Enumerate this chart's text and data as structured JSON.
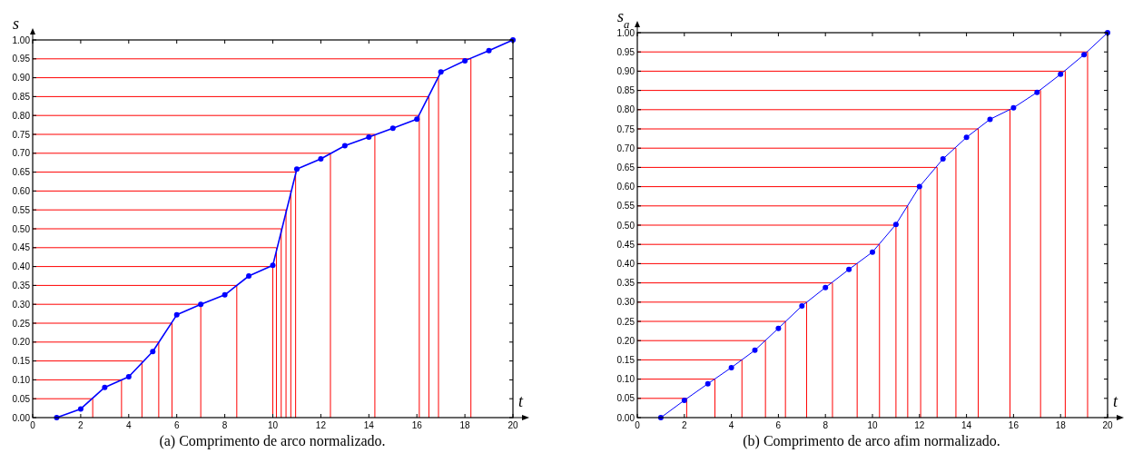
{
  "chart_data": [
    {
      "type": "line",
      "title": "(a)  Comprimento de arco normalizado.",
      "xlabel": "t",
      "ylabel": "s",
      "grid": false,
      "xlim": [
        0,
        20
      ],
      "xticks": [
        0,
        2,
        4,
        6,
        8,
        10,
        12,
        14,
        16,
        18,
        20
      ],
      "ylim": [
        0,
        1
      ],
      "yticks": [
        {
          "value": 0,
          "label": "0.00"
        },
        {
          "value": 0.05,
          "label": "0.05"
        },
        {
          "value": 0.1,
          "label": "0.10"
        },
        {
          "value": 0.15,
          "label": "0.15"
        },
        {
          "value": 0.2,
          "label": "0.20"
        },
        {
          "value": 0.25,
          "label": "0.25"
        },
        {
          "value": 0.3,
          "label": "0.30"
        },
        {
          "value": 0.35,
          "label": "0.35"
        },
        {
          "value": 0.4,
          "label": "0.40"
        },
        {
          "value": 0.45,
          "label": "0.45"
        },
        {
          "value": 0.5,
          "label": "0.50"
        },
        {
          "value": 0.55,
          "label": "0.55"
        },
        {
          "value": 0.6,
          "label": "0.60"
        },
        {
          "value": 0.65,
          "label": "0.65"
        },
        {
          "value": 0.7,
          "label": "0.70"
        },
        {
          "value": 0.75,
          "label": "0.75"
        },
        {
          "value": 0.8,
          "label": "0.80"
        },
        {
          "value": 0.85,
          "label": "0.85"
        },
        {
          "value": 0.9,
          "label": "0.90"
        },
        {
          "value": 0.95,
          "label": "0.95"
        },
        {
          "value": 1,
          "label": "1.00"
        }
      ],
      "series": [
        {
          "color": "#ff0000",
          "marker": "none",
          "x": [
            0,
            2.5,
            2.5,
            null,
            0,
            3.7,
            3.7,
            null,
            0,
            4.55,
            4.55,
            null,
            0,
            5.25,
            5.25,
            null,
            0,
            5.8,
            5.8,
            null,
            0,
            7,
            7,
            null,
            0,
            8.5,
            8.5,
            null,
            0,
            10,
            10,
            null,
            0,
            10.15,
            10.15,
            null,
            0,
            10.35,
            10.35,
            null,
            0,
            10.55,
            10.55,
            null,
            0,
            10.75,
            10.75,
            null,
            0,
            10.95,
            10.95,
            null,
            0,
            12.4,
            12.4,
            null,
            0,
            14.25,
            14.25,
            null,
            0,
            16.1,
            16.1,
            null,
            0,
            16.5,
            16.5,
            null,
            0,
            16.9,
            16.9,
            null,
            0,
            18.25,
            18.25,
            null
          ],
          "values": [
            0.05,
            0.05,
            0,
            null,
            0.1,
            0.1,
            0,
            null,
            0.15,
            0.15,
            0,
            null,
            0.2,
            0.2,
            0,
            null,
            0.25,
            0.25,
            0,
            null,
            0.3,
            0.3,
            0,
            null,
            0.35,
            0.35,
            0,
            null,
            0.4,
            0.4,
            0,
            null,
            0.45,
            0.45,
            0,
            null,
            0.5,
            0.5,
            0,
            null,
            0.55,
            0.55,
            0,
            null,
            0.6,
            0.6,
            0,
            null,
            0.65,
            0.65,
            0,
            null,
            0.7,
            0.7,
            0,
            null,
            0.75,
            0.75,
            0,
            null,
            0.8,
            0.8,
            0,
            null,
            0.85,
            0.85,
            0,
            null,
            0.9,
            0.9,
            0,
            null,
            0.95,
            0.95,
            0,
            null
          ]
        },
        {
          "color": "#0000ff",
          "marker": "circle",
          "x": [
            1,
            2,
            3,
            4,
            5,
            6,
            7,
            8,
            9,
            10,
            11,
            12,
            13,
            14,
            15,
            16,
            17,
            18,
            19,
            20
          ],
          "values": [
            0,
            0.023,
            0.08,
            0.108,
            0.175,
            0.272,
            0.3,
            0.325,
            0.375,
            0.403,
            0.658,
            0.685,
            0.72,
            0.743,
            0.766,
            0.79,
            0.915,
            0.945,
            0.972,
            1
          ]
        }
      ]
    },
    {
      "type": "line",
      "title": "(b)  Comprimento de arco afim normalizado.",
      "xlabel": "t",
      "ylabel": "s$_{a}$",
      "grid": false,
      "xlim": [
        0,
        20
      ],
      "xticks": [
        0,
        2,
        4,
        6,
        8,
        10,
        12,
        14,
        16,
        18,
        20
      ],
      "ylim": [
        0,
        1
      ],
      "yticks": [
        {
          "value": 0,
          "label": "0.00"
        },
        {
          "value": 0.05,
          "label": "0.05"
        },
        {
          "value": 0.1,
          "label": "0.10"
        },
        {
          "value": 0.15,
          "label": "0.15"
        },
        {
          "value": 0.2,
          "label": "0.20"
        },
        {
          "value": 0.25,
          "label": "0.25"
        },
        {
          "value": 0.3,
          "label": "0.30"
        },
        {
          "value": 0.35,
          "label": "0.35"
        },
        {
          "value": 0.4,
          "label": "0.40"
        },
        {
          "value": 0.45,
          "label": "0.45"
        },
        {
          "value": 0.5,
          "label": "0.50"
        },
        {
          "value": 0.55,
          "label": "0.55"
        },
        {
          "value": 0.6,
          "label": "0.60"
        },
        {
          "value": 0.65,
          "label": "0.65"
        },
        {
          "value": 0.7,
          "label": "0.70"
        },
        {
          "value": 0.75,
          "label": "0.75"
        },
        {
          "value": 0.8,
          "label": "0.80"
        },
        {
          "value": 0.85,
          "label": "0.85"
        },
        {
          "value": 0.9,
          "label": "0.90"
        },
        {
          "value": 0.95,
          "label": "0.95"
        },
        {
          "value": 1,
          "label": "1.00"
        }
      ],
      "series": [
        {
          "color": "#ff0000",
          "marker": "none",
          "x": [
            0,
            2.1,
            2.1,
            null,
            0,
            3.3,
            3.3,
            null,
            0,
            4.45,
            4.45,
            null,
            0,
            5.45,
            5.45,
            null,
            0,
            6.3,
            6.3,
            null,
            0,
            7.2,
            7.2,
            null,
            0,
            8.3,
            8.3,
            null,
            0,
            9.35,
            9.35,
            null,
            0,
            10.3,
            10.3,
            null,
            0,
            11,
            11,
            null,
            0,
            11.5,
            11.5,
            null,
            0,
            12.05,
            12.05,
            null,
            0,
            12.75,
            12.75,
            null,
            0,
            13.55,
            13.55,
            null,
            0,
            14.5,
            14.5,
            null,
            0,
            15.85,
            15.85,
            null,
            0,
            17.15,
            17.15,
            null,
            0,
            18.2,
            18.2,
            null,
            0,
            19.15,
            19.15,
            null
          ],
          "values": [
            0.05,
            0.05,
            0,
            null,
            0.1,
            0.1,
            0,
            null,
            0.15,
            0.15,
            0,
            null,
            0.2,
            0.2,
            0,
            null,
            0.25,
            0.25,
            0,
            null,
            0.3,
            0.3,
            0,
            null,
            0.35,
            0.35,
            0,
            null,
            0.4,
            0.4,
            0,
            null,
            0.45,
            0.45,
            0,
            null,
            0.5,
            0.5,
            0,
            null,
            0.55,
            0.55,
            0,
            null,
            0.6,
            0.6,
            0,
            null,
            0.65,
            0.65,
            0,
            null,
            0.7,
            0.7,
            0,
            null,
            0.75,
            0.75,
            0,
            null,
            0.8,
            0.8,
            0,
            null,
            0.85,
            0.85,
            0,
            null,
            0.9,
            0.9,
            0,
            null,
            0.95,
            0.95,
            0,
            null
          ]
        },
        {
          "color": "#0000ff",
          "marker": "circle",
          "x": [
            1,
            2,
            3,
            4,
            5,
            6,
            7,
            8,
            9,
            10,
            11,
            12,
            13,
            14,
            15,
            16,
            17,
            18,
            19,
            20
          ],
          "values": [
            0,
            0.045,
            0.088,
            0.13,
            0.175,
            0.232,
            0.29,
            0.338,
            0.385,
            0.43,
            0.502,
            0.6,
            0.672,
            0.728,
            0.775,
            0.805,
            0.845,
            0.892,
            0.943,
            1
          ]
        }
      ]
    }
  ]
}
